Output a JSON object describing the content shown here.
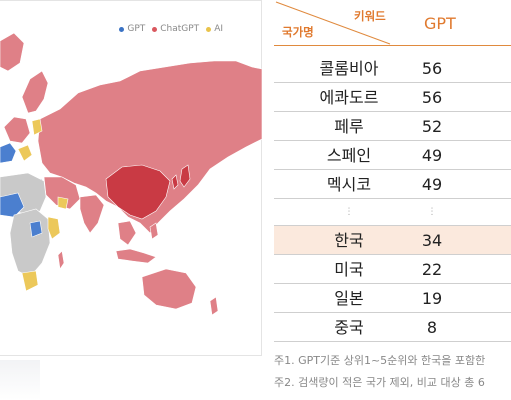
{
  "legend": [
    {
      "label": "GPT",
      "color": "#3a72c4"
    },
    {
      "label": "ChatGPT",
      "color": "#d9575e"
    },
    {
      "label": "AI",
      "color": "#e9c34a"
    }
  ],
  "map_colors": {
    "gpt": "#4b7fcf",
    "chatgpt": "#df8087",
    "chatgpt_dark": "#c93a44",
    "ai": "#ecc85a",
    "none": "#c9c9c9"
  },
  "table": {
    "header_country": "국가명",
    "header_keyword": "키워드",
    "header_metric": "GPT",
    "accent_color": "#e07a2f",
    "highlight_color": "#fbe9dd"
  },
  "chart_data": {
    "type": "table",
    "columns": [
      "국가명",
      "GPT"
    ],
    "rows": [
      {
        "country": "콜롬비아",
        "value": 56
      },
      {
        "country": "에콰도르",
        "value": 56
      },
      {
        "country": "페루",
        "value": 52
      },
      {
        "country": "스페인",
        "value": 49
      },
      {
        "country": "멕시코",
        "value": 49
      },
      {
        "country": "⋮",
        "value": "⋮",
        "ellipsis": true
      },
      {
        "country": "한국",
        "value": 34,
        "highlight": true
      },
      {
        "country": "미국",
        "value": 22
      },
      {
        "country": "일본",
        "value": 19
      },
      {
        "country": "중국",
        "value": 8
      }
    ]
  },
  "notes": [
    "주1. GPT기준 상위1~5순위와 한국을 포함한",
    "주2. 검색량이 적은 국가 제외, 비교 대상 총 6"
  ]
}
